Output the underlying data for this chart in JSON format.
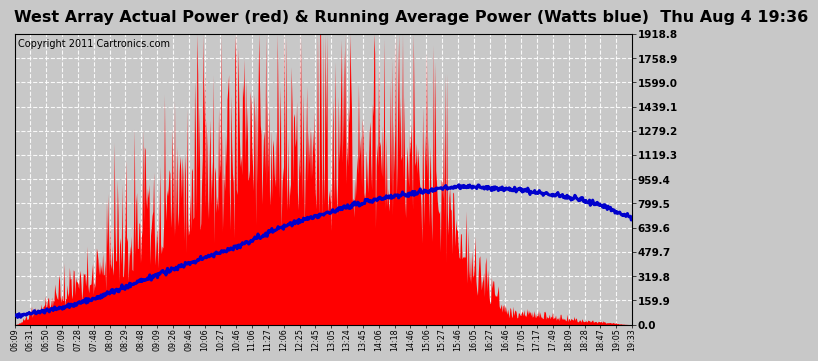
{
  "title": "West Array Actual Power (red) & Running Average Power (Watts blue)  Thu Aug 4 19:36",
  "copyright": "Copyright 2011 Cartronics.com",
  "y_tick_values": [
    0.0,
    159.9,
    319.8,
    479.7,
    639.6,
    799.5,
    959.4,
    1119.3,
    1279.2,
    1439.1,
    1599.0,
    1758.9,
    1918.8
  ],
  "x_labels": [
    "06:09",
    "06:31",
    "06:50",
    "07:09",
    "07:28",
    "07:48",
    "08:09",
    "08:29",
    "08:48",
    "09:09",
    "09:26",
    "09:46",
    "10:06",
    "10:27",
    "10:46",
    "11:06",
    "11:27",
    "12:06",
    "12:25",
    "12:45",
    "13:05",
    "13:24",
    "13:45",
    "14:06",
    "14:18",
    "14:46",
    "15:06",
    "15:27",
    "15:46",
    "16:05",
    "16:27",
    "16:46",
    "17:05",
    "17:17",
    "17:49",
    "18:09",
    "18:28",
    "18:47",
    "19:05",
    "19:33"
  ],
  "background_color": "#c8c8c8",
  "plot_bg_color": "#c8c8c8",
  "fill_color": "#ff0000",
  "line_color": "#0000cc",
  "grid_color": "#ffffff",
  "title_fontsize": 11.5,
  "copyright_fontsize": 7,
  "ymax": 1918.8,
  "ymin": 0.0
}
